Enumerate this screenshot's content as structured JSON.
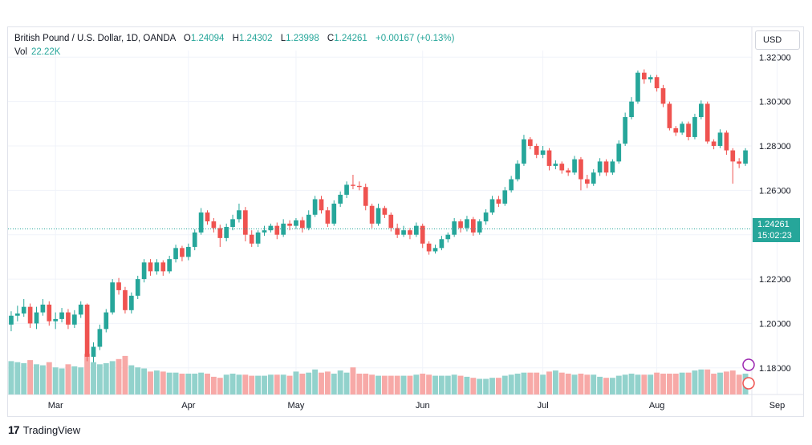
{
  "header": {
    "symbol": "British Pound / U.S. Dollar, 1D, OANDA",
    "open_label": "O",
    "open": "1.24094",
    "high_label": "H",
    "high": "1.24302",
    "low_label": "L",
    "low": "1.23998",
    "close_label": "C",
    "close": "1.24261",
    "change": "+0.00167 (+0.13%)"
  },
  "volume": {
    "label": "Vol",
    "value": "22.22K"
  },
  "currency_button": "USD",
  "last_price": {
    "price": "1.24261",
    "countdown": "15:02:23"
  },
  "brand": "TradingView",
  "colors": {
    "up": "#26a69a",
    "down": "#ef5350",
    "up_vol": "#92d2cc",
    "down_vol": "#f7a9a7",
    "grid": "#f0f3fa"
  },
  "chart_data": {
    "type": "candlestick",
    "symbol": "GBP/USD",
    "y_axis": {
      "ticks": [
        "1.18000",
        "1.20000",
        "1.22000",
        "1.24000",
        "1.26000",
        "1.28000",
        "1.30000",
        "1.32000"
      ],
      "min": 1.168,
      "max": 1.323
    },
    "x_axis": {
      "labels": [
        "Mar",
        "Apr",
        "May",
        "Jun",
        "Jul",
        "Aug",
        "Sep"
      ],
      "label_index": [
        7,
        28,
        45,
        65,
        84,
        102,
        121
      ]
    },
    "candles": [
      [
        1.1995,
        1.2035,
        1.1965,
        1.2055,
        1.6
      ],
      [
        1.2035,
        1.2045,
        1.201,
        1.208,
        1.55
      ],
      [
        1.2045,
        1.2075,
        1.203,
        1.211,
        1.5
      ],
      [
        1.2075,
        1.2,
        1.198,
        1.209,
        1.65
      ],
      [
        1.2,
        1.205,
        1.1975,
        1.2075,
        1.45
      ],
      [
        1.205,
        1.2085,
        1.2035,
        1.211,
        1.4
      ],
      [
        1.2085,
        1.201,
        1.199,
        1.21,
        1.55
      ],
      [
        1.201,
        1.202,
        1.1975,
        1.205,
        1.3
      ],
      [
        1.202,
        1.205,
        1.2005,
        1.207,
        1.25
      ],
      [
        1.205,
        1.1995,
        1.1975,
        1.2065,
        1.45
      ],
      [
        1.1995,
        1.204,
        1.198,
        1.206,
        1.35
      ],
      [
        1.204,
        1.2085,
        1.2025,
        1.21,
        1.3
      ],
      [
        1.2085,
        1.185,
        1.183,
        1.209,
        1.95
      ],
      [
        1.185,
        1.1895,
        1.1825,
        1.1915,
        1.55
      ],
      [
        1.1895,
        1.1975,
        1.188,
        1.1995,
        1.45
      ],
      [
        1.1975,
        1.205,
        1.196,
        1.2065,
        1.5
      ],
      [
        1.205,
        1.2185,
        1.204,
        1.22,
        1.6
      ],
      [
        1.2185,
        1.215,
        1.213,
        1.2205,
        1.7
      ],
      [
        1.215,
        1.206,
        1.2045,
        1.2165,
        1.85
      ],
      [
        1.206,
        1.2125,
        1.2045,
        1.214,
        1.4
      ],
      [
        1.2125,
        1.22,
        1.211,
        1.2215,
        1.3
      ],
      [
        1.22,
        1.2275,
        1.2185,
        1.229,
        1.25
      ],
      [
        1.2275,
        1.2235,
        1.2215,
        1.229,
        1.1
      ],
      [
        1.2235,
        1.2275,
        1.222,
        1.229,
        1.15
      ],
      [
        1.2275,
        1.2235,
        1.2215,
        1.2285,
        1.1
      ],
      [
        1.2235,
        1.229,
        1.2225,
        1.2305,
        1.05
      ],
      [
        1.229,
        1.234,
        1.2275,
        1.2355,
        1.05
      ],
      [
        1.234,
        1.23,
        1.228,
        1.235,
        1.0
      ],
      [
        1.23,
        1.2345,
        1.2285,
        1.236,
        1.0
      ],
      [
        1.2345,
        1.241,
        1.233,
        1.2425,
        1.0
      ],
      [
        1.241,
        1.25,
        1.24,
        1.252,
        1.05
      ],
      [
        1.25,
        1.246,
        1.2445,
        1.251,
        1.0
      ],
      [
        1.246,
        1.243,
        1.241,
        1.2475,
        0.85
      ],
      [
        1.243,
        1.2385,
        1.2345,
        1.2445,
        0.8
      ],
      [
        1.2385,
        1.2435,
        1.237,
        1.245,
        0.95
      ],
      [
        1.2435,
        1.247,
        1.242,
        1.249,
        1.0
      ],
      [
        1.247,
        1.251,
        1.2455,
        1.254,
        0.95
      ],
      [
        1.251,
        1.24,
        1.237,
        1.2525,
        0.95
      ],
      [
        1.24,
        1.236,
        1.2345,
        1.242,
        0.9
      ],
      [
        1.236,
        1.241,
        1.2345,
        1.242,
        0.9
      ],
      [
        1.241,
        1.242,
        1.2395,
        1.244,
        0.9
      ],
      [
        1.242,
        1.244,
        1.241,
        1.245,
        0.95
      ],
      [
        1.244,
        1.24,
        1.238,
        1.2455,
        0.95
      ],
      [
        1.24,
        1.245,
        1.239,
        1.247,
        0.95
      ],
      [
        1.245,
        1.244,
        1.242,
        1.2465,
        0.9
      ],
      [
        1.244,
        1.2465,
        1.2425,
        1.2475,
        1.1
      ],
      [
        1.2465,
        1.243,
        1.241,
        1.248,
        1.0
      ],
      [
        1.243,
        1.249,
        1.242,
        1.251,
        1.05
      ],
      [
        1.249,
        1.256,
        1.248,
        1.2575,
        1.2
      ],
      [
        1.256,
        1.251,
        1.2495,
        1.2575,
        1.05
      ],
      [
        1.251,
        1.245,
        1.2435,
        1.2525,
        1.1
      ],
      [
        1.245,
        1.254,
        1.244,
        1.2555,
        1.0
      ],
      [
        1.254,
        1.258,
        1.2525,
        1.2595,
        1.15
      ],
      [
        1.258,
        1.2625,
        1.2565,
        1.264,
        1.05
      ],
      [
        1.2625,
        1.262,
        1.2605,
        1.267,
        1.3
      ],
      [
        1.262,
        1.2615,
        1.26,
        1.264,
        1.0
      ],
      [
        1.2615,
        1.253,
        1.251,
        1.263,
        1.0
      ],
      [
        1.253,
        1.245,
        1.243,
        1.254,
        0.95
      ],
      [
        1.245,
        1.252,
        1.244,
        1.254,
        0.9
      ],
      [
        1.252,
        1.249,
        1.2475,
        1.253,
        0.9
      ],
      [
        1.249,
        1.243,
        1.2415,
        1.25,
        0.9
      ],
      [
        1.243,
        1.24,
        1.2385,
        1.245,
        0.9
      ],
      [
        1.24,
        1.242,
        1.239,
        1.244,
        0.9
      ],
      [
        1.242,
        1.24,
        1.238,
        1.243,
        0.9
      ],
      [
        1.24,
        1.244,
        1.239,
        1.2455,
        0.95
      ],
      [
        1.244,
        1.236,
        1.234,
        1.245,
        1.0
      ],
      [
        1.236,
        1.2325,
        1.231,
        1.237,
        0.95
      ],
      [
        1.2325,
        1.234,
        1.2315,
        1.2355,
        0.9
      ],
      [
        1.234,
        1.238,
        1.233,
        1.2395,
        0.9
      ],
      [
        1.238,
        1.24,
        1.2365,
        1.241,
        0.9
      ],
      [
        1.24,
        1.246,
        1.239,
        1.2475,
        0.95
      ],
      [
        1.246,
        1.243,
        1.241,
        1.247,
        0.9
      ],
      [
        1.243,
        1.247,
        1.2415,
        1.2485,
        0.85
      ],
      [
        1.247,
        1.241,
        1.2395,
        1.248,
        0.8
      ],
      [
        1.241,
        1.246,
        1.24,
        1.247,
        0.75
      ],
      [
        1.246,
        1.25,
        1.2445,
        1.2515,
        0.75
      ],
      [
        1.25,
        1.256,
        1.249,
        1.2575,
        0.8
      ],
      [
        1.256,
        1.254,
        1.2525,
        1.2575,
        0.8
      ],
      [
        1.254,
        1.26,
        1.253,
        1.2615,
        0.9
      ],
      [
        1.26,
        1.265,
        1.259,
        1.2665,
        0.95
      ],
      [
        1.265,
        1.272,
        1.264,
        1.2735,
        1.0
      ],
      [
        1.272,
        1.283,
        1.271,
        1.285,
        1.05
      ],
      [
        1.283,
        1.28,
        1.2785,
        1.284,
        1.05
      ],
      [
        1.28,
        1.276,
        1.2745,
        1.281,
        1.05
      ],
      [
        1.276,
        1.278,
        1.2745,
        1.28,
        0.95
      ],
      [
        1.278,
        1.271,
        1.269,
        1.279,
        1.1
      ],
      [
        1.271,
        1.272,
        1.2695,
        1.2735,
        1.15
      ],
      [
        1.272,
        1.269,
        1.2675,
        1.273,
        1.05
      ],
      [
        1.269,
        1.268,
        1.2665,
        1.27,
        1.0
      ],
      [
        1.268,
        1.274,
        1.267,
        1.2755,
        0.95
      ],
      [
        1.274,
        1.265,
        1.26,
        1.275,
        1.0
      ],
      [
        1.265,
        1.263,
        1.261,
        1.267,
        0.95
      ],
      [
        1.263,
        1.268,
        1.262,
        1.2695,
        0.95
      ],
      [
        1.268,
        1.273,
        1.2665,
        1.2745,
        0.85
      ],
      [
        1.273,
        1.268,
        1.2665,
        1.274,
        0.8
      ],
      [
        1.268,
        1.273,
        1.267,
        1.274,
        0.8
      ],
      [
        1.273,
        1.281,
        1.272,
        1.2825,
        0.9
      ],
      [
        1.281,
        1.293,
        1.28,
        1.295,
        0.95
      ],
      [
        1.293,
        1.3,
        1.292,
        1.302,
        1.0
      ],
      [
        1.3,
        1.313,
        1.299,
        1.314,
        0.95
      ],
      [
        1.313,
        1.31,
        1.308,
        1.3145,
        0.95
      ],
      [
        1.31,
        1.311,
        1.3085,
        1.312,
        0.95
      ],
      [
        1.311,
        1.306,
        1.3045,
        1.312,
        1.05
      ],
      [
        1.306,
        1.299,
        1.2975,
        1.3075,
        1.0
      ],
      [
        1.299,
        1.288,
        1.287,
        1.3,
        1.0
      ],
      [
        1.288,
        1.286,
        1.2845,
        1.289,
        1.0
      ],
      [
        1.286,
        1.29,
        1.285,
        1.291,
        1.05
      ],
      [
        1.29,
        1.284,
        1.2825,
        1.291,
        1.05
      ],
      [
        1.284,
        1.293,
        1.283,
        1.2945,
        1.15
      ],
      [
        1.293,
        1.299,
        1.292,
        1.3005,
        1.2
      ],
      [
        1.299,
        1.282,
        1.281,
        1.3,
        1.2
      ],
      [
        1.282,
        1.28,
        1.2785,
        1.283,
        1.0
      ],
      [
        1.28,
        1.286,
        1.279,
        1.2875,
        1.05
      ],
      [
        1.286,
        1.278,
        1.276,
        1.287,
        1.1
      ],
      [
        1.278,
        1.273,
        1.263,
        1.279,
        1.15
      ],
      [
        1.273,
        1.272,
        1.27,
        1.2745,
        0.95
      ],
      [
        1.272,
        1.278,
        1.271,
        1.279,
        1.0
      ]
    ],
    "last_price": 1.24261
  }
}
